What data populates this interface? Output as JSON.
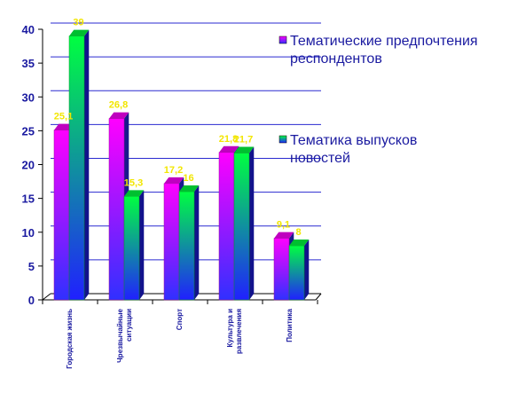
{
  "chart_data": {
    "type": "bar",
    "categories": [
      "Городская жизнь",
      "Чрезвычайные ситуации",
      "Спорт",
      "Культура и развлечения",
      "Политика"
    ],
    "category_lines": [
      [
        "Городская жизнь"
      ],
      [
        "Чрезвычайные",
        "ситуации"
      ],
      [
        "Спорт"
      ],
      [
        "Культура и",
        "развлечения"
      ],
      [
        "Политика"
      ]
    ],
    "series": [
      {
        "name": "Тематические предпочтения респондентов",
        "name_lines": [
          "Тематические предпочтения",
          "респондентов"
        ],
        "values": [
          25.1,
          26.8,
          17.2,
          21.8,
          9.1
        ],
        "labels": [
          "25,1",
          "26,8",
          "17,2",
          "21,8",
          "9,1"
        ]
      },
      {
        "name": "Тематика выпусков новостей",
        "name_lines": [
          "Тематика выпусков",
          "новостей"
        ],
        "values": [
          39,
          15.3,
          16,
          21.7,
          8
        ],
        "labels": [
          "39",
          "15,3",
          "16",
          "21,7",
          "8"
        ]
      }
    ],
    "yticks": [
      0,
      5,
      10,
      15,
      20,
      25,
      30,
      35,
      40
    ],
    "ylim": [
      0,
      40
    ],
    "grid": true,
    "legend_position": "right",
    "colors": {
      "series1_top": "#ff00ff",
      "series1_bottom": "#3030ff",
      "series2_top": "#00ff40",
      "series2_bottom": "#2020ff",
      "grid": "#2a2ad0",
      "axis": "#000000",
      "data_label": "#f2e600",
      "text": "#1a1aa0"
    }
  }
}
